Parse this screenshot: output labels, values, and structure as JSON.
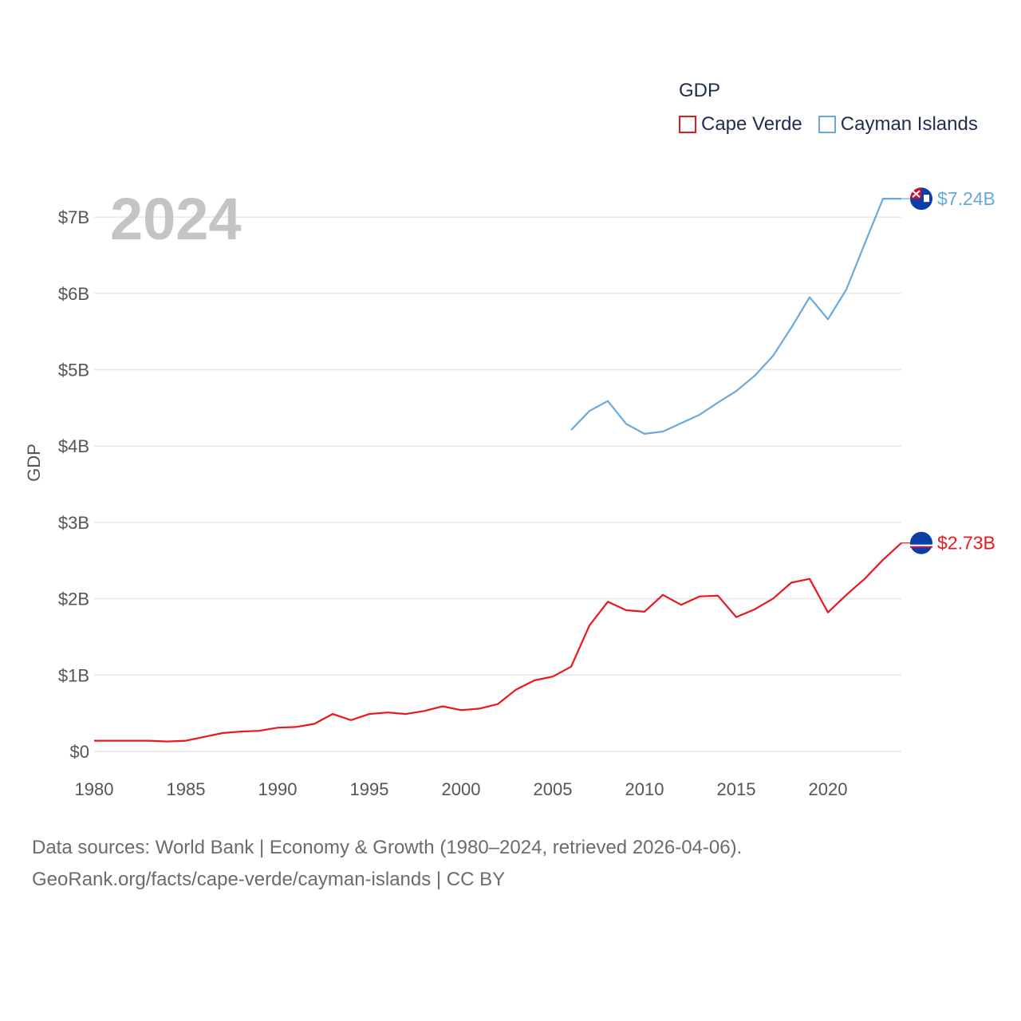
{
  "legend": {
    "title": "GDP",
    "items": [
      {
        "label": "Cape Verde",
        "color": "#e8191c"
      },
      {
        "label": "Cayman Islands",
        "color": "#6aa9e0"
      }
    ]
  },
  "footer": {
    "line1": "Data sources: World Bank | Economy & Growth (1980–2024, retrieved 2026-04-06).",
    "line2": "GeoRank.org/facts/cape-verde/cayman-islands | CC BY"
  },
  "chart_data": {
    "type": "line",
    "year_label": "2024",
    "ylabel": "GDP",
    "xlabel": "",
    "xlim": [
      1980,
      2024
    ],
    "ylim": [
      0,
      7.6
    ],
    "x_ticks": [
      1980,
      1985,
      1990,
      1995,
      2000,
      2005,
      2010,
      2015,
      2020
    ],
    "y_ticks": [
      {
        "value": 0,
        "label": "$0"
      },
      {
        "value": 1,
        "label": "$1B"
      },
      {
        "value": 2,
        "label": "$2B"
      },
      {
        "value": 3,
        "label": "$3B"
      },
      {
        "value": 4,
        "label": "$4B"
      },
      {
        "value": 5,
        "label": "$5B"
      },
      {
        "value": 6,
        "label": "$6B"
      },
      {
        "value": 7,
        "label": "$7B"
      }
    ],
    "grid": true,
    "series": [
      {
        "name": "Cape Verde",
        "color": "#e8191c",
        "end_label": "$2.73B",
        "flag": "cape-verde-flag-icon",
        "x": [
          1980,
          1981,
          1982,
          1983,
          1984,
          1985,
          1986,
          1987,
          1988,
          1989,
          1990,
          1991,
          1992,
          1993,
          1994,
          1995,
          1996,
          1997,
          1998,
          1999,
          2000,
          2001,
          2002,
          2003,
          2004,
          2005,
          2006,
          2007,
          2008,
          2009,
          2010,
          2011,
          2012,
          2013,
          2014,
          2015,
          2016,
          2017,
          2018,
          2019,
          2020,
          2021,
          2022,
          2023,
          2024
        ],
        "values": [
          0.14,
          0.14,
          0.14,
          0.14,
          0.13,
          0.14,
          0.19,
          0.24,
          0.26,
          0.27,
          0.31,
          0.32,
          0.36,
          0.49,
          0.41,
          0.49,
          0.51,
          0.49,
          0.53,
          0.59,
          0.54,
          0.56,
          0.62,
          0.81,
          0.93,
          0.98,
          1.11,
          1.65,
          1.96,
          1.85,
          1.83,
          2.05,
          1.92,
          2.03,
          2.04,
          1.76,
          1.86,
          2.0,
          2.21,
          2.26,
          1.82,
          2.05,
          2.26,
          2.51,
          2.73
        ]
      },
      {
        "name": "Cayman Islands",
        "color": "#6aa9e0",
        "end_label": "$7.24B",
        "flag": "cayman-islands-flag-icon",
        "x": [
          2006,
          2007,
          2008,
          2009,
          2010,
          2011,
          2012,
          2013,
          2014,
          2015,
          2016,
          2017,
          2018,
          2019,
          2020,
          2021,
          2022,
          2023,
          2024
        ],
        "values": [
          4.21,
          4.46,
          4.59,
          4.29,
          4.16,
          4.19,
          4.3,
          4.41,
          4.57,
          4.72,
          4.92,
          5.18,
          5.55,
          5.95,
          5.66,
          6.05,
          6.65,
          7.24,
          7.24
        ]
      }
    ]
  }
}
